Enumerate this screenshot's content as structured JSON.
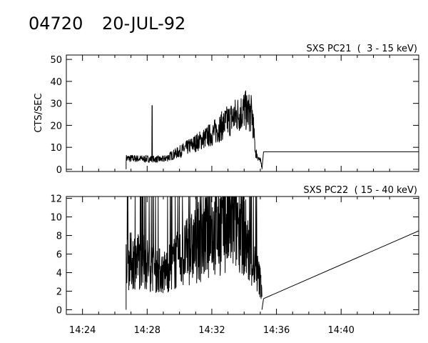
{
  "header": {
    "id": "04720",
    "date": "20-JUL-92"
  },
  "x_axis": {
    "start_min": 863,
    "end_min": 884.8,
    "ticks": [
      {
        "min": 864,
        "label": "14:24"
      },
      {
        "min": 868,
        "label": "14:28"
      },
      {
        "min": 872,
        "label": "14:32"
      },
      {
        "min": 876,
        "label": "14:36"
      },
      {
        "min": 880,
        "label": "14:40"
      }
    ]
  },
  "chart_data": [
    {
      "type": "line",
      "title": "SXS PC21  (  3 - 15 keV)",
      "ylabel": "CTS/SEC",
      "ylim": [
        -1,
        52
      ],
      "yticks": [
        0,
        10,
        20,
        30,
        40,
        50
      ],
      "data_start_min": 866.7,
      "data_end_min": 875.1,
      "profile": [
        [
          866.7,
          5
        ],
        [
          869,
          4.5
        ],
        [
          870,
          8
        ],
        [
          871,
          12
        ],
        [
          872,
          16
        ],
        [
          873,
          22
        ],
        [
          874,
          27
        ],
        [
          874.5,
          25
        ],
        [
          874.7,
          8
        ],
        [
          875.1,
          2
        ]
      ],
      "spike": {
        "x": 868.3,
        "y": 29
      },
      "fill_line": {
        "x": [
          875.2,
          884.8
        ],
        "y": [
          8,
          8
        ]
      }
    },
    {
      "type": "line",
      "title": "SXS PC22  ( 15 - 40 keV)",
      "ylabel": "",
      "ylim": [
        -0.5,
        12.2
      ],
      "yticks": [
        0,
        2,
        4,
        6,
        8,
        10,
        12
      ],
      "data_start_min": 866.7,
      "data_end_min": 875.1,
      "profile": [
        [
          866.7,
          5
        ],
        [
          867.3,
          5.5
        ],
        [
          868,
          5
        ],
        [
          869,
          4
        ],
        [
          870,
          5.5
        ],
        [
          871,
          7
        ],
        [
          872,
          8.5
        ],
        [
          873,
          9
        ],
        [
          873.8,
          10
        ],
        [
          874.3,
          6
        ],
        [
          874.8,
          4
        ],
        [
          875.1,
          2.5
        ]
      ],
      "fill_line": {
        "x": [
          875.2,
          884.8
        ],
        "y": [
          1.2,
          8.5
        ]
      }
    }
  ]
}
